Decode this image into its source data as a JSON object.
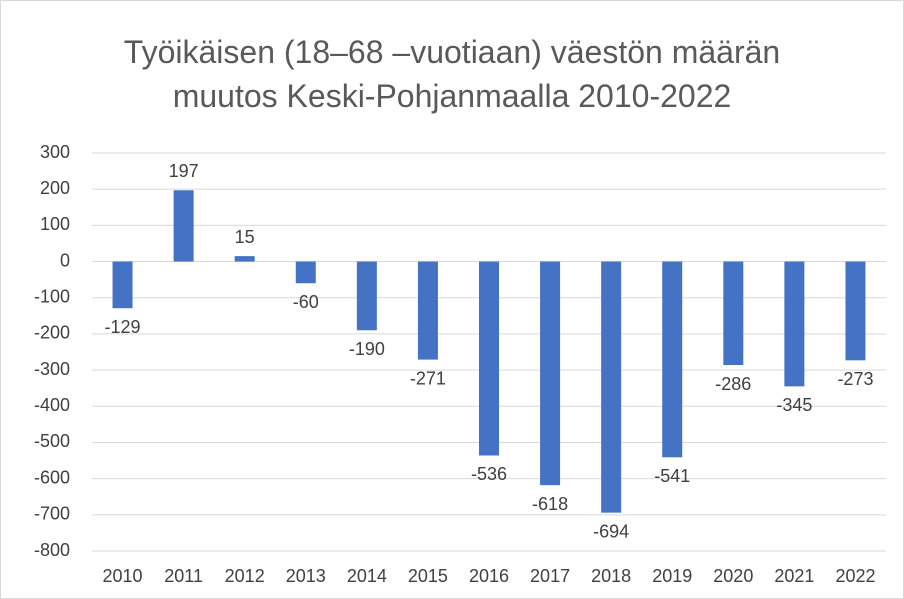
{
  "chart_data": {
    "type": "bar",
    "title": "Työikäisen (18–68 –vuotiaan) väestön määrän muutos Keski-Pohjanmaalla 2010-2022",
    "categories": [
      "2010",
      "2011",
      "2012",
      "2013",
      "2014",
      "2015",
      "2016",
      "2017",
      "2018",
      "2019",
      "2020",
      "2021",
      "2022"
    ],
    "values": [
      -129,
      197,
      15,
      -60,
      -190,
      -271,
      -536,
      -618,
      -694,
      -541,
      -286,
      -345,
      -273
    ],
    "color": "#4472c4",
    "ylim": [
      -800,
      300
    ],
    "yticks": [
      -800,
      -700,
      -600,
      -500,
      -400,
      -300,
      -200,
      -100,
      0,
      100,
      200,
      300
    ],
    "grid": true
  }
}
